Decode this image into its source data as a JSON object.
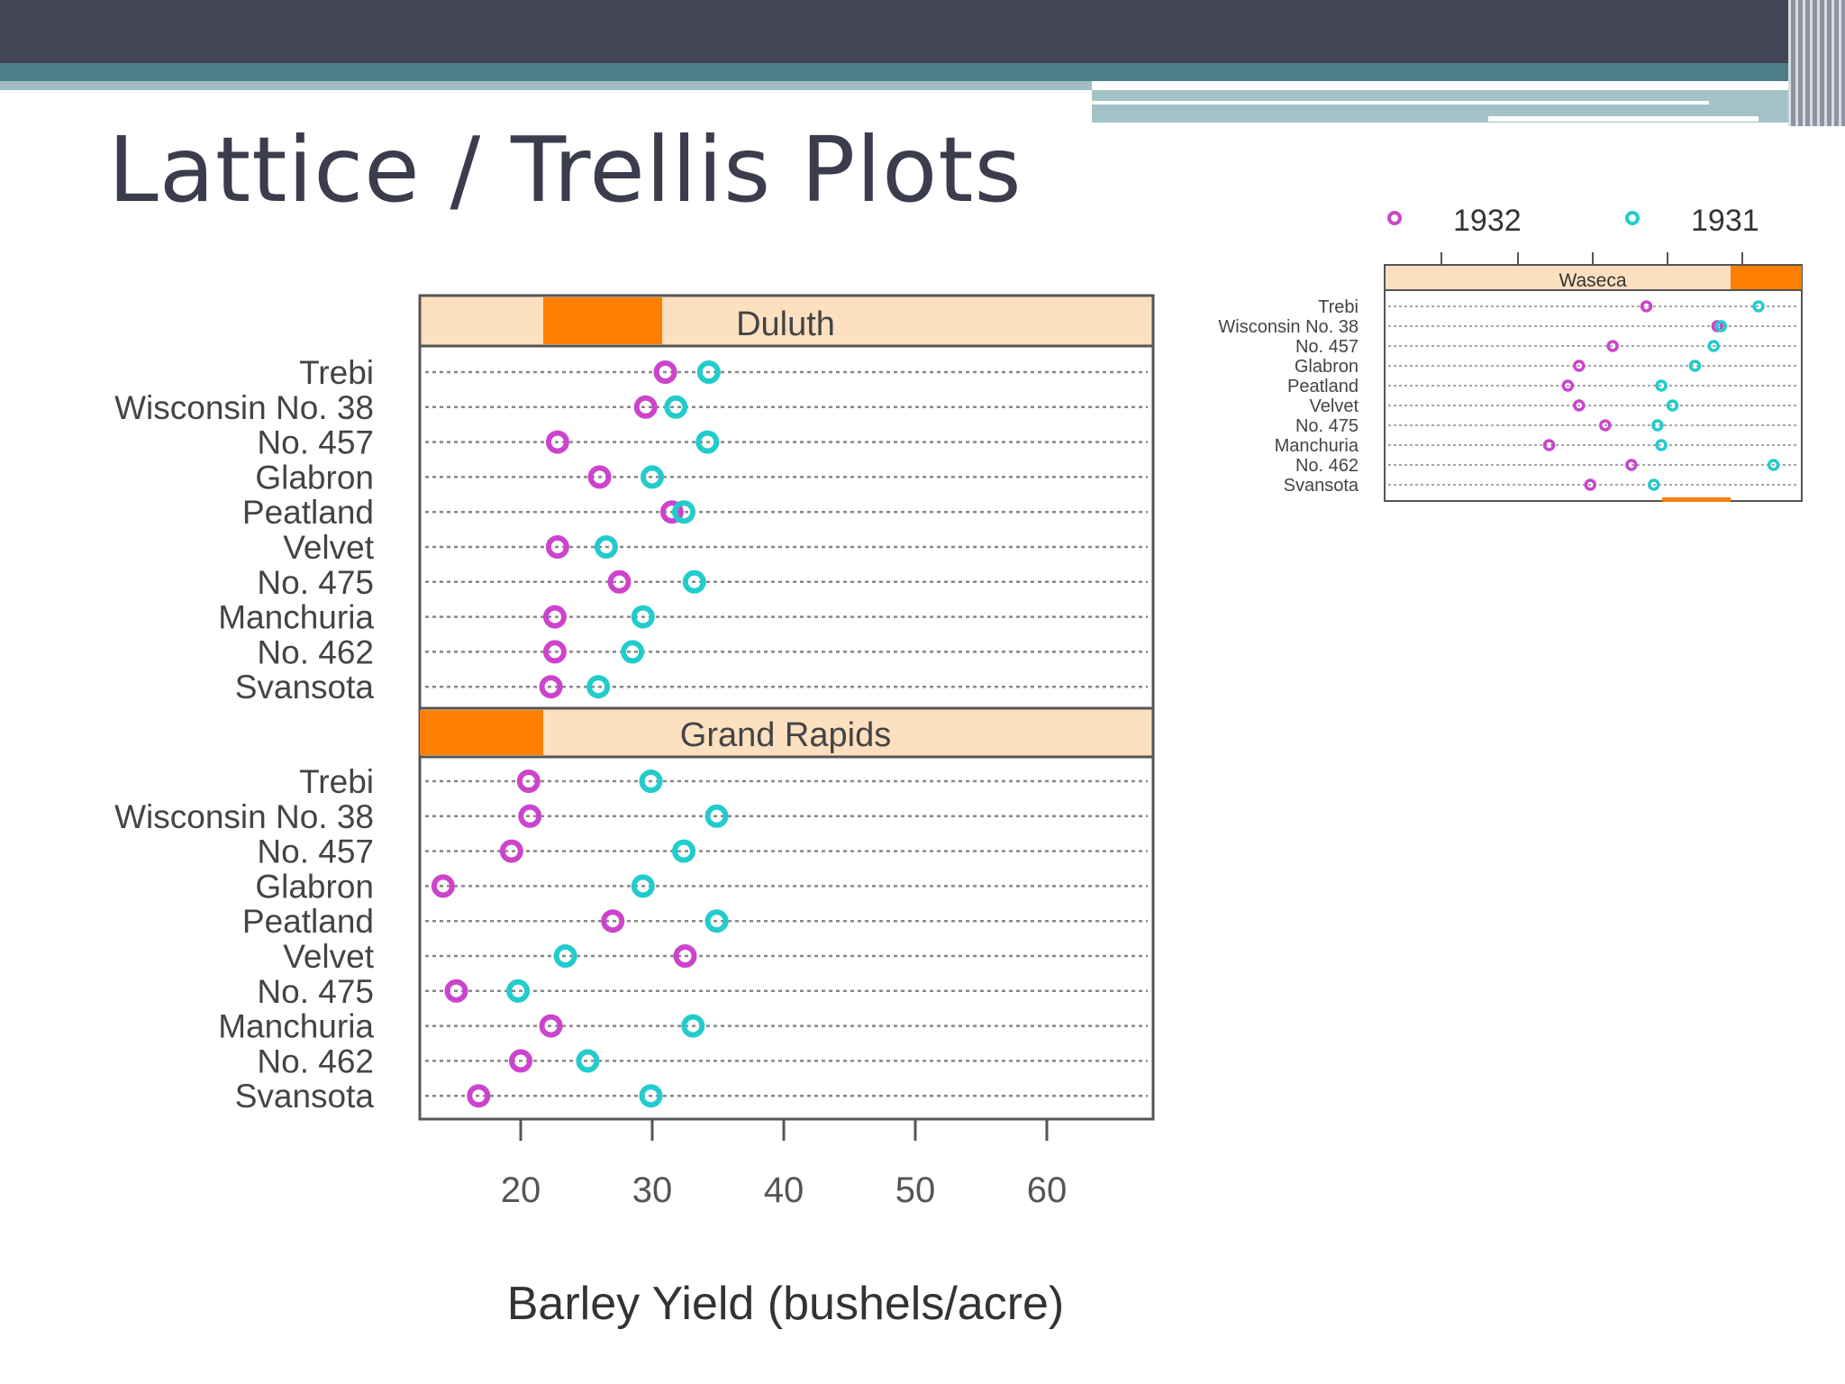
{
  "slide": {
    "title": "Lattice / Trellis Plots"
  },
  "colors": {
    "series_1932": "#cc44cc",
    "series_1931": "#22cccc",
    "strip_bg": "#fde0c0",
    "strip_accent": "#ff7f00",
    "header_dark": "#444556",
    "header_teal": "#4a7f86"
  },
  "chart_data": [
    {
      "type": "scatter",
      "variant": "dot-plot",
      "xlabel": "Barley Yield (bushels/acre)",
      "ylabel": "",
      "xlim": [
        12,
        68
      ],
      "xticks": [
        "20",
        "30",
        "40",
        "50",
        "60"
      ],
      "grid": "dotted horizontal lines per variety",
      "legend": "",
      "categories": [
        "Trebi",
        "Wisconsin No. 38",
        "No. 457",
        "Glabron",
        "Peatland",
        "Velvet",
        "No. 475",
        "Manchuria",
        "No. 462",
        "Svansota"
      ],
      "panels": [
        {
          "name": "Duluth",
          "series": [
            {
              "key": "1932",
              "values": [
                31.0,
                29.5,
                22.8,
                26.0,
                31.5,
                22.8,
                27.5,
                22.6,
                22.6,
                22.3
              ]
            },
            {
              "key": "1931",
              "values": [
                34.3,
                31.8,
                34.2,
                30.0,
                32.4,
                26.5,
                33.2,
                29.3,
                28.5,
                25.9
              ]
            }
          ]
        },
        {
          "name": "Grand Rapids",
          "series": [
            {
              "key": "1932",
              "values": [
                20.6,
                20.7,
                19.3,
                14.1,
                27.0,
                32.5,
                15.1,
                22.3,
                20.0,
                16.8
              ]
            },
            {
              "key": "1931",
              "values": [
                29.9,
                34.9,
                32.4,
                29.3,
                34.9,
                23.4,
                19.8,
                33.1,
                25.1,
                29.9
              ]
            }
          ]
        }
      ]
    },
    {
      "type": "scatter",
      "variant": "dot-plot",
      "legend": "top",
      "legend_entries": [
        {
          "key": "1932",
          "label": "1932"
        },
        {
          "key": "1931",
          "label": "1931"
        }
      ],
      "xlim": [
        12,
        68
      ],
      "categories": [
        "Trebi",
        "Wisconsin No. 38",
        "No. 457",
        "Glabron",
        "Peatland",
        "Velvet",
        "No. 475",
        "Manchuria",
        "No. 462",
        "Svansota"
      ],
      "panels": [
        {
          "name": "Waseca",
          "series": [
            {
              "key": "1932",
              "values": [
                47.0,
                56.5,
                42.5,
                38.0,
                36.5,
                38.0,
                41.5,
                34.0,
                45.0,
                39.5
              ]
            },
            {
              "key": "1931",
              "values": [
                62.0,
                57.0,
                56.0,
                53.5,
                49.0,
                50.5,
                48.5,
                49.0,
                64.0,
                48.0
              ]
            }
          ]
        }
      ]
    }
  ]
}
